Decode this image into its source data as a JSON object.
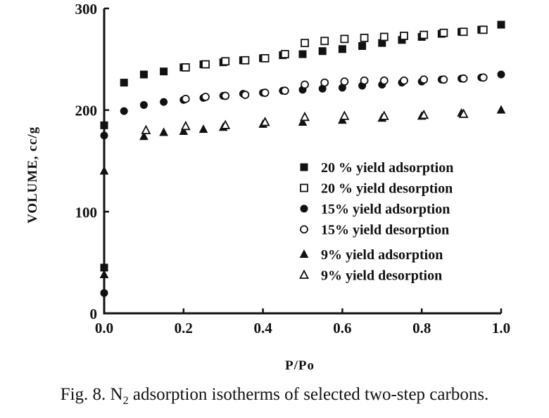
{
  "chart_data": {
    "type": "scatter",
    "title": "",
    "xlabel": "P/Po",
    "ylabel": "VOLUME,  cc/g",
    "xlim": [
      0,
      1.0
    ],
    "ylim": [
      0,
      300
    ],
    "x_ticks": [
      0,
      0.2,
      0.4,
      0.6,
      0.8,
      1.0
    ],
    "x_tick_labels": [
      "0.0",
      "0.2",
      "0.4",
      "0.6",
      "0.8",
      "1.0"
    ],
    "y_ticks": [
      0,
      100,
      200,
      300
    ],
    "y_tick_labels": [
      "0",
      "100",
      "200",
      "300"
    ],
    "grid": false,
    "legend_position": "bottom-right",
    "series": [
      {
        "name": "20 % yield adsorption",
        "marker": "square",
        "filled": true,
        "points": [
          [
            0.0,
            45
          ],
          [
            0.0,
            185
          ],
          [
            0.05,
            227
          ],
          [
            0.1,
            235
          ],
          [
            0.15,
            238
          ],
          [
            0.2,
            242
          ],
          [
            0.25,
            245
          ],
          [
            0.3,
            247
          ],
          [
            0.35,
            249
          ],
          [
            0.4,
            251
          ],
          [
            0.45,
            254
          ],
          [
            0.5,
            255
          ],
          [
            0.55,
            258
          ],
          [
            0.6,
            260
          ],
          [
            0.65,
            263
          ],
          [
            0.7,
            266
          ],
          [
            0.75,
            269
          ],
          [
            0.8,
            272
          ],
          [
            0.85,
            275
          ],
          [
            0.9,
            277
          ],
          [
            0.95,
            279
          ],
          [
            1.0,
            284
          ]
        ]
      },
      {
        "name": "20 % yield desorption",
        "marker": "square",
        "filled": false,
        "points": [
          [
            0.2,
            242
          ],
          [
            0.25,
            245
          ],
          [
            0.3,
            248
          ],
          [
            0.35,
            249
          ],
          [
            0.4,
            251
          ],
          [
            0.45,
            255
          ],
          [
            0.5,
            266
          ],
          [
            0.55,
            268
          ],
          [
            0.6,
            270
          ],
          [
            0.65,
            271
          ],
          [
            0.7,
            272
          ],
          [
            0.75,
            273
          ],
          [
            0.8,
            274
          ],
          [
            0.85,
            276
          ],
          [
            0.9,
            277
          ],
          [
            0.95,
            279
          ]
        ]
      },
      {
        "name": "15% yield adsorption",
        "marker": "circle",
        "filled": true,
        "points": [
          [
            0.0,
            20
          ],
          [
            0.0,
            175
          ],
          [
            0.05,
            199
          ],
          [
            0.1,
            205
          ],
          [
            0.15,
            208
          ],
          [
            0.2,
            210
          ],
          [
            0.25,
            212
          ],
          [
            0.3,
            214
          ],
          [
            0.35,
            216
          ],
          [
            0.4,
            217
          ],
          [
            0.45,
            219
          ],
          [
            0.5,
            220
          ],
          [
            0.55,
            221
          ],
          [
            0.6,
            222
          ],
          [
            0.65,
            224
          ],
          [
            0.7,
            225
          ],
          [
            0.75,
            227
          ],
          [
            0.8,
            228
          ],
          [
            0.85,
            230
          ],
          [
            0.9,
            231
          ],
          [
            0.95,
            232
          ],
          [
            1.0,
            235
          ]
        ]
      },
      {
        "name": "15% yield desorption",
        "marker": "circle",
        "filled": false,
        "points": [
          [
            0.2,
            211
          ],
          [
            0.25,
            213
          ],
          [
            0.3,
            214
          ],
          [
            0.35,
            215
          ],
          [
            0.4,
            217
          ],
          [
            0.45,
            219
          ],
          [
            0.5,
            225
          ],
          [
            0.55,
            227
          ],
          [
            0.6,
            228
          ],
          [
            0.65,
            229
          ],
          [
            0.7,
            229
          ],
          [
            0.75,
            229
          ],
          [
            0.8,
            230
          ],
          [
            0.85,
            230
          ],
          [
            0.9,
            231
          ],
          [
            0.95,
            232
          ]
        ]
      },
      {
        "name": "9% yield adsorption",
        "marker": "triangle",
        "filled": true,
        "points": [
          [
            0.0,
            38
          ],
          [
            0.0,
            140
          ],
          [
            0.1,
            174
          ],
          [
            0.15,
            178
          ],
          [
            0.2,
            179
          ],
          [
            0.25,
            181
          ],
          [
            0.3,
            183
          ],
          [
            0.4,
            186
          ],
          [
            0.5,
            188
          ],
          [
            0.6,
            190
          ],
          [
            0.7,
            192
          ],
          [
            0.8,
            194
          ],
          [
            0.9,
            197
          ],
          [
            1.0,
            200
          ]
        ]
      },
      {
        "name": "9% yield desorption",
        "marker": "triangle",
        "filled": false,
        "points": [
          [
            0.1,
            180
          ],
          [
            0.2,
            184
          ],
          [
            0.3,
            185
          ],
          [
            0.4,
            188
          ],
          [
            0.5,
            193
          ],
          [
            0.6,
            194
          ],
          [
            0.7,
            194
          ],
          [
            0.8,
            195
          ],
          [
            0.9,
            196
          ]
        ]
      }
    ]
  },
  "caption": {
    "prefix": "Fig. 8. N",
    "subscript": "2",
    "suffix": " adsorption isotherms of selected two-step carbons."
  }
}
